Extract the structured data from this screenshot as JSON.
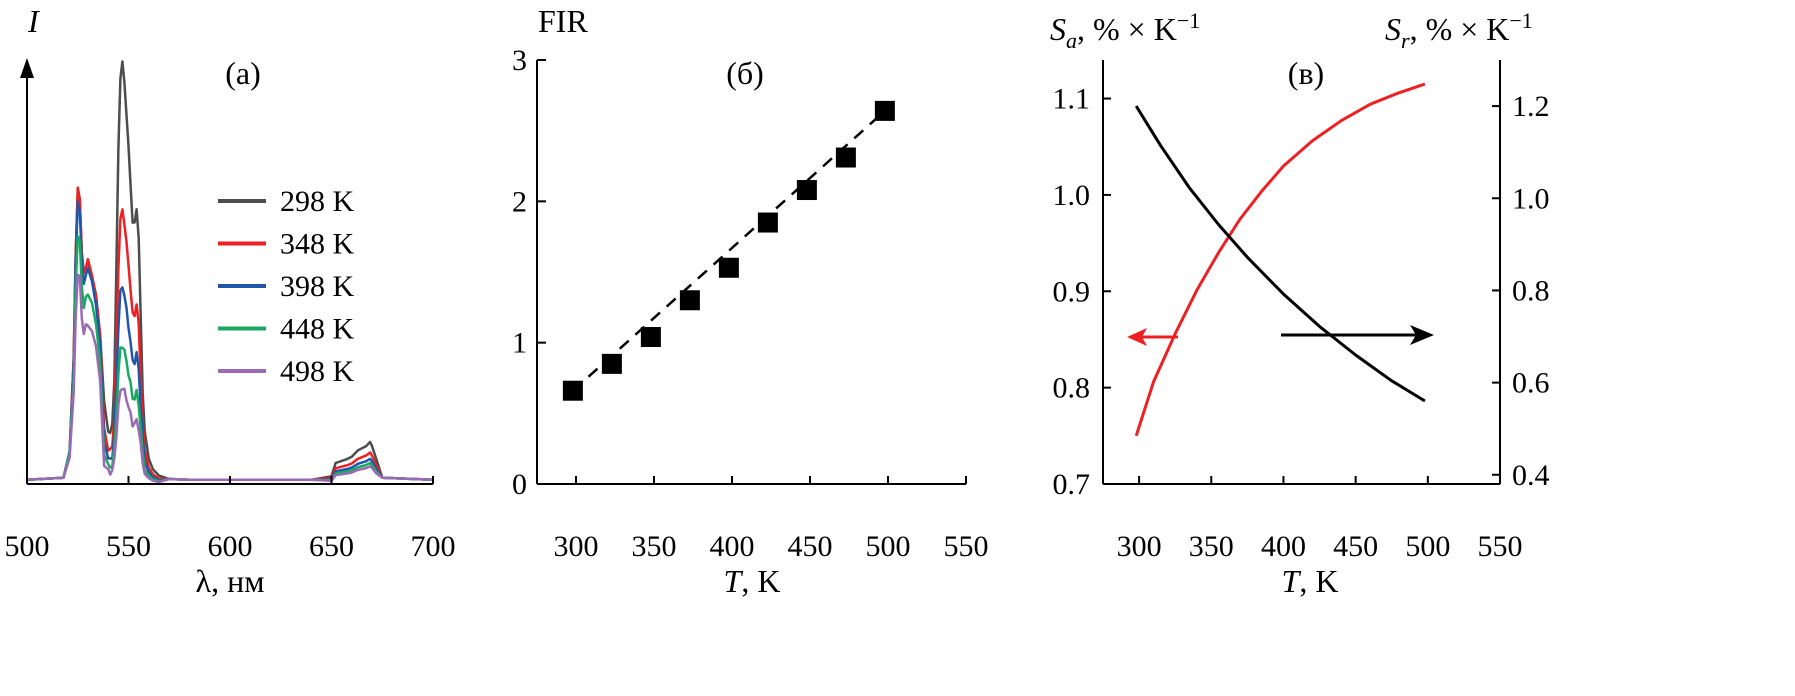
{
  "chart_data": [
    {
      "type": "line",
      "panel_label": "(а)",
      "xlabel": "λ, нм",
      "ylabel": "I",
      "xlim": [
        500,
        700
      ],
      "x_ticks": [
        500,
        550,
        600,
        650,
        700
      ],
      "y_ticks_shown": false,
      "legend_placement": "top-center",
      "series": [
        {
          "name": "298 K",
          "color": "#4d4d4d",
          "scale": 1.0,
          "x": [
            500,
            518,
            521,
            523,
            524,
            525,
            526,
            527,
            528,
            529,
            530,
            532,
            534,
            536,
            538,
            540,
            541,
            542,
            543,
            544,
            545,
            546,
            547,
            548,
            549,
            550,
            551,
            552,
            553,
            554,
            555,
            556,
            557,
            558,
            560,
            562,
            565,
            570,
            580,
            600,
            640,
            650,
            652,
            655,
            658,
            660,
            663,
            665,
            667,
            669,
            670,
            672,
            675,
            700
          ],
          "y": [
            0.01,
            0.015,
            0.08,
            0.3,
            0.55,
            0.7,
            0.68,
            0.55,
            0.5,
            0.52,
            0.53,
            0.5,
            0.45,
            0.35,
            0.2,
            0.13,
            0.12,
            0.14,
            0.25,
            0.5,
            0.8,
            0.97,
            1.0,
            0.96,
            0.88,
            0.8,
            0.72,
            0.62,
            0.62,
            0.66,
            0.58,
            0.4,
            0.22,
            0.12,
            0.06,
            0.035,
            0.02,
            0.012,
            0.01,
            0.01,
            0.01,
            0.018,
            0.05,
            0.055,
            0.06,
            0.065,
            0.08,
            0.085,
            0.09,
            0.1,
            0.09,
            0.06,
            0.015,
            0.01
          ]
        },
        {
          "name": "348 K",
          "color": "#ed2024",
          "scale": 0.7
        },
        {
          "name": "398 K",
          "color": "#2057a8",
          "scale": 0.51
        },
        {
          "name": "448 K",
          "color": "#1aa862",
          "scale": 0.4
        },
        {
          "name": "498 K",
          "color": "#9a6ab5",
          "scale": 0.32
        }
      ],
      "line_peak_scaling": [
        {
          "name": "348 K",
          "g1": 1.0,
          "g2": 0.65,
          "r": 0.75
        },
        {
          "name": "398 K",
          "g1": 0.96,
          "g2": 0.47,
          "r": 0.6
        },
        {
          "name": "448 K",
          "g1": 0.85,
          "g2": 0.33,
          "r": 0.5
        },
        {
          "name": "498 K",
          "g1": 0.72,
          "g2": 0.23,
          "r": 0.42
        }
      ]
    },
    {
      "type": "scatter",
      "panel_label": "(б)",
      "xlabel_italic": "T",
      "xlabel_rest": ", K",
      "ylabel": "FIR",
      "xlim": [
        275,
        550
      ],
      "ylim": [
        0,
        3
      ],
      "x_ticks": [
        300,
        350,
        400,
        450,
        500,
        550
      ],
      "y_ticks": [
        0,
        1,
        2,
        3
      ],
      "fit_line": "dashed",
      "x": [
        298,
        323,
        348,
        373,
        398,
        423,
        448,
        473,
        498
      ],
      "y": [
        0.66,
        0.85,
        1.04,
        1.3,
        1.53,
        1.85,
        2.08,
        2.31,
        2.64
      ]
    },
    {
      "type": "line",
      "panel_label": "(в)",
      "xlabel_italic": "T",
      "xlabel_rest": ", K",
      "ylabel_left_main": "S",
      "ylabel_left_sub": "a",
      "ylabel_right_main": "S",
      "ylabel_right_sub": "r",
      "ylabel_unit": ", % × K",
      "ylabel_exp": "−1",
      "xlim": [
        275,
        550
      ],
      "x_ticks": [
        300,
        350,
        400,
        450,
        500,
        550
      ],
      "ylim_left": [
        0.7,
        1.14
      ],
      "y_ticks_left": [
        "0.7",
        "0.8",
        "0.9",
        "1.0",
        "1.1"
      ],
      "ylim_right": [
        0.38,
        1.3
      ],
      "y_ticks_right": [
        "0.4",
        "0.6",
        "0.8",
        "1.0",
        "1.2"
      ],
      "series": [
        {
          "axis": "left",
          "color": "#ed2024",
          "x": [
            298,
            310,
            325,
            340,
            355,
            370,
            385,
            400,
            420,
            440,
            460,
            480,
            498
          ],
          "y": [
            0.75,
            0.806,
            0.856,
            0.901,
            0.94,
            0.975,
            1.004,
            1.03,
            1.056,
            1.077,
            1.094,
            1.106,
            1.115
          ]
        },
        {
          "axis": "right",
          "color": "#000000",
          "x": [
            298,
            315,
            335,
            355,
            375,
            400,
            425,
            450,
            475,
            498
          ],
          "y": [
            1.2,
            1.114,
            1.022,
            0.943,
            0.872,
            0.792,
            0.722,
            0.66,
            0.604,
            0.56
          ]
        }
      ],
      "arrows": [
        {
          "direction": "left",
          "color": "#ed2024"
        },
        {
          "direction": "right",
          "color": "#000000"
        }
      ]
    }
  ]
}
